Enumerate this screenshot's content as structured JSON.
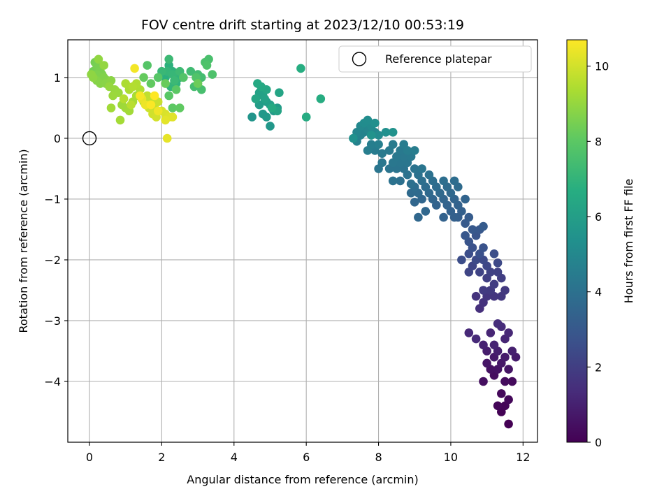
{
  "chart_data": {
    "type": "scatter",
    "title": "FOV centre drift starting at 2023/12/10 00:53:19",
    "xlabel": "Angular distance from reference (arcmin)",
    "ylabel": "Rotation from reference (arcmin)",
    "xlim": [
      -0.6,
      12.4
    ],
    "ylim": [
      -5.0,
      1.62
    ],
    "xticks": [
      0,
      2,
      4,
      6,
      8,
      10,
      12
    ],
    "yticks": [
      -4,
      -3,
      -2,
      -1,
      0,
      1
    ],
    "xtick_labels": [
      "0",
      "2",
      "4",
      "6",
      "8",
      "10",
      "12"
    ],
    "ytick_labels": [
      "−4",
      "−3",
      "−2",
      "−1",
      "0",
      "1"
    ],
    "grid": true,
    "legend": {
      "placement": "top-right",
      "entries": [
        "Reference platepar"
      ]
    },
    "reference_point": {
      "x": 0,
      "y": 0,
      "label": "Reference platepar"
    },
    "colorbar": {
      "label": "Hours from first FF file",
      "colormap": "viridis",
      "range": [
        0,
        10.7
      ],
      "ticks": [
        0,
        2,
        4,
        6,
        8,
        10
      ],
      "tick_labels": [
        "0",
        "2",
        "4",
        "6",
        "8",
        "10"
      ]
    },
    "series": [
      {
        "points": [
          [
            11.6,
            -4.7
          ],
          [
            11.4,
            -4.5
          ],
          [
            11.5,
            -4.4
          ],
          [
            11.3,
            -4.4
          ],
          [
            11.6,
            -4.3
          ],
          [
            11.4,
            -4.2
          ],
          [
            11.7,
            -4.0
          ],
          [
            11.5,
            -4.0
          ],
          [
            11.2,
            -3.9
          ],
          [
            10.9,
            -4.0
          ],
          [
            11.1,
            -3.8
          ],
          [
            11.3,
            -3.8
          ],
          [
            11.6,
            -3.8
          ],
          [
            11.0,
            -3.7
          ],
          [
            11.4,
            -3.7
          ],
          [
            11.2,
            -3.6
          ],
          [
            11.5,
            -3.6
          ],
          [
            11.8,
            -3.6
          ],
          [
            11.0,
            -3.5
          ],
          [
            11.3,
            -3.5
          ],
          [
            11.7,
            -3.5
          ],
          [
            10.9,
            -3.4
          ],
          [
            11.2,
            -3.4
          ],
          [
            11.5,
            -3.3
          ],
          [
            11.1,
            -3.2
          ],
          [
            11.6,
            -3.2
          ],
          [
            10.5,
            -3.2
          ],
          [
            10.7,
            -3.3
          ],
          [
            11.4,
            -3.1
          ],
          [
            11.3,
            -3.05
          ]
        ],
        "hours_range": [
          0.0,
          1.4
        ]
      },
      {
        "points": [
          [
            10.8,
            -2.8
          ],
          [
            10.9,
            -2.7
          ],
          [
            10.7,
            -2.6
          ],
          [
            11.0,
            -2.6
          ],
          [
            11.2,
            -2.6
          ],
          [
            11.4,
            -2.6
          ],
          [
            11.5,
            -2.5
          ],
          [
            11.1,
            -2.5
          ],
          [
            10.9,
            -2.5
          ],
          [
            11.2,
            -2.4
          ],
          [
            11.4,
            -2.3
          ],
          [
            11.0,
            -2.3
          ],
          [
            11.3,
            -2.2
          ],
          [
            11.1,
            -2.2
          ],
          [
            10.8,
            -2.2
          ],
          [
            10.5,
            -2.2
          ],
          [
            10.6,
            -2.1
          ],
          [
            11.0,
            -2.1
          ],
          [
            11.3,
            -2.05
          ],
          [
            10.9,
            -2.0
          ],
          [
            10.7,
            -2.0
          ],
          [
            10.3,
            -2.0
          ],
          [
            10.5,
            -1.9
          ],
          [
            11.2,
            -1.9
          ],
          [
            10.8,
            -1.9
          ],
          [
            10.6,
            -1.8
          ],
          [
            10.9,
            -1.8
          ],
          [
            10.5,
            -1.7
          ],
          [
            10.7,
            -1.6
          ],
          [
            10.4,
            -1.6
          ],
          [
            10.8,
            -1.5
          ],
          [
            10.6,
            -1.5
          ],
          [
            10.4,
            -1.4
          ],
          [
            10.9,
            -1.45
          ],
          [
            10.5,
            -1.3
          ],
          [
            10.2,
            -1.3
          ]
        ],
        "hours_range": [
          1.5,
          3.2
        ]
      },
      {
        "points": [
          [
            10.1,
            -1.3
          ],
          [
            10.3,
            -1.2
          ],
          [
            10.0,
            -1.2
          ],
          [
            9.8,
            -1.3
          ],
          [
            10.2,
            -1.1
          ],
          [
            9.9,
            -1.1
          ],
          [
            9.6,
            -1.1
          ],
          [
            10.4,
            -1.0
          ],
          [
            10.1,
            -1.0
          ],
          [
            9.8,
            -1.0
          ],
          [
            9.5,
            -1.0
          ],
          [
            9.2,
            -1.0
          ],
          [
            9.0,
            -1.05
          ],
          [
            9.3,
            -1.2
          ],
          [
            9.1,
            -1.3
          ],
          [
            10.0,
            -0.9
          ],
          [
            9.7,
            -0.9
          ],
          [
            9.4,
            -0.9
          ],
          [
            9.1,
            -0.9
          ],
          [
            8.9,
            -0.9
          ],
          [
            10.2,
            -0.8
          ],
          [
            9.9,
            -0.8
          ],
          [
            9.6,
            -0.8
          ],
          [
            9.3,
            -0.8
          ],
          [
            9.0,
            -0.8
          ],
          [
            10.1,
            -0.7
          ],
          [
            9.8,
            -0.7
          ],
          [
            9.5,
            -0.7
          ],
          [
            9.2,
            -0.7
          ],
          [
            8.9,
            -0.75
          ],
          [
            8.6,
            -0.7
          ],
          [
            9.4,
            -0.6
          ],
          [
            9.1,
            -0.6
          ],
          [
            8.8,
            -0.6
          ],
          [
            8.4,
            -0.7
          ],
          [
            9.0,
            -0.5
          ],
          [
            8.7,
            -0.5
          ],
          [
            8.5,
            -0.5
          ],
          [
            8.3,
            -0.5
          ],
          [
            8.0,
            -0.5
          ],
          [
            9.2,
            -0.5
          ],
          [
            8.6,
            -0.4
          ],
          [
            8.8,
            -0.4
          ],
          [
            8.4,
            -0.4
          ],
          [
            8.1,
            -0.4
          ],
          [
            8.7,
            -0.3
          ],
          [
            8.5,
            -0.3
          ],
          [
            8.9,
            -0.3
          ],
          [
            8.6,
            -0.2
          ],
          [
            8.3,
            -0.2
          ],
          [
            8.1,
            -0.25
          ],
          [
            7.9,
            -0.2
          ],
          [
            8.4,
            -0.1
          ],
          [
            8.7,
            -0.1
          ],
          [
            9.0,
            -0.2
          ],
          [
            8.8,
            -0.2
          ],
          [
            7.7,
            -0.2
          ],
          [
            7.8,
            -0.1
          ],
          [
            8.0,
            -0.1
          ]
        ],
        "hours_range": [
          3.3,
          4.6
        ]
      },
      {
        "points": [
          [
            7.4,
            -0.05
          ],
          [
            7.5,
            0.05
          ],
          [
            7.6,
            0.1
          ],
          [
            7.4,
            0.1
          ],
          [
            7.7,
            0.15
          ],
          [
            7.9,
            0.1
          ],
          [
            7.5,
            0.2
          ],
          [
            7.8,
            0.2
          ],
          [
            8.0,
            0.05
          ],
          [
            7.6,
            0.25
          ],
          [
            7.7,
            0.3
          ],
          [
            7.9,
            0.25
          ],
          [
            8.2,
            0.1
          ],
          [
            7.3,
            0.0
          ],
          [
            8.4,
            0.1
          ],
          [
            7.8,
            0.05
          ]
        ],
        "hours_range": [
          4.7,
          5.5
        ]
      },
      {
        "points": [
          [
            4.5,
            0.35
          ],
          [
            5.0,
            0.2
          ],
          [
            4.8,
            0.4
          ],
          [
            4.9,
            0.35
          ],
          [
            5.1,
            0.45
          ],
          [
            5.2,
            0.5
          ],
          [
            4.7,
            0.55
          ],
          [
            4.9,
            0.6
          ],
          [
            5.0,
            0.55
          ],
          [
            4.8,
            0.7
          ],
          [
            4.7,
            0.75
          ],
          [
            4.85,
            0.65
          ],
          [
            5.2,
            0.45
          ],
          [
            5.25,
            0.75
          ],
          [
            4.6,
            0.65
          ],
          [
            4.9,
            0.8
          ],
          [
            4.75,
            0.85
          ],
          [
            4.65,
            0.9
          ],
          [
            5.05,
            0.5
          ],
          [
            6.0,
            0.35
          ],
          [
            6.4,
            0.65
          ],
          [
            5.85,
            1.15
          ]
        ],
        "hours_range": [
          5.6,
          6.7
        ]
      },
      {
        "points": [
          [
            2.1,
            1.0
          ],
          [
            2.2,
            1.2
          ],
          [
            2.3,
            1.1
          ],
          [
            2.4,
            0.9
          ],
          [
            2.5,
            1.0
          ],
          [
            2.25,
            0.85
          ],
          [
            2.15,
            1.1
          ],
          [
            2.3,
            1.05
          ],
          [
            2.0,
            1.1
          ],
          [
            2.35,
            0.95
          ],
          [
            2.2,
            1.3
          ],
          [
            2.5,
            1.1
          ],
          [
            2.8,
            1.1
          ],
          [
            3.0,
            1.05
          ],
          [
            3.1,
            1.0
          ],
          [
            2.9,
            0.85
          ],
          [
            3.1,
            0.8
          ],
          [
            3.3,
            1.3
          ],
          [
            3.2,
            1.25
          ],
          [
            3.4,
            1.05
          ],
          [
            3.25,
            1.2
          ],
          [
            2.95,
            1.0
          ],
          [
            2.6,
            1.0
          ],
          [
            1.6,
            1.2
          ],
          [
            1.9,
            1.0
          ],
          [
            2.2,
            0.7
          ],
          [
            2.4,
            0.8
          ],
          [
            2.3,
            0.5
          ],
          [
            2.5,
            0.5
          ],
          [
            1.7,
            0.9
          ],
          [
            1.5,
            1.0
          ],
          [
            1.8,
            0.6
          ],
          [
            2.1,
            0.9
          ],
          [
            3.0,
            0.9
          ]
        ],
        "hours_range": [
          6.8,
          8.3
        ]
      },
      {
        "points": [
          [
            0.1,
            1.1
          ],
          [
            0.15,
            1.25
          ],
          [
            0.2,
            1.2
          ],
          [
            0.25,
            1.15
          ],
          [
            0.3,
            1.1
          ],
          [
            0.35,
            1.05
          ],
          [
            0.2,
            1.05
          ],
          [
            0.3,
            1.0
          ],
          [
            0.4,
            1.0
          ],
          [
            0.5,
            0.95
          ],
          [
            0.2,
            0.95
          ],
          [
            0.3,
            0.9
          ],
          [
            0.45,
            0.9
          ],
          [
            0.6,
            0.95
          ],
          [
            0.1,
            1.0
          ],
          [
            0.05,
            1.05
          ],
          [
            0.25,
            1.3
          ],
          [
            0.4,
            1.2
          ],
          [
            0.55,
            0.85
          ],
          [
            0.7,
            0.8
          ],
          [
            0.8,
            0.75
          ],
          [
            0.65,
            0.7
          ],
          [
            0.9,
            0.55
          ],
          [
            1.0,
            0.5
          ],
          [
            0.6,
            0.5
          ],
          [
            1.1,
            0.45
          ],
          [
            0.85,
            0.3
          ],
          [
            1.2,
            0.6
          ],
          [
            1.3,
            0.7
          ],
          [
            1.1,
            0.8
          ],
          [
            1.0,
            0.9
          ],
          [
            1.4,
            0.8
          ],
          [
            1.3,
            0.9
          ],
          [
            1.2,
            0.85
          ],
          [
            0.95,
            0.65
          ],
          [
            1.5,
            0.6
          ],
          [
            1.15,
            0.55
          ]
        ],
        "hours_range": [
          8.4,
          9.6
        ]
      },
      {
        "points": [
          [
            1.6,
            0.7
          ],
          [
            1.7,
            0.6
          ],
          [
            1.8,
            0.5
          ],
          [
            1.9,
            0.6
          ],
          [
            1.65,
            0.5
          ],
          [
            1.75,
            0.4
          ],
          [
            1.85,
            0.35
          ],
          [
            2.0,
            0.45
          ],
          [
            2.1,
            0.4
          ],
          [
            2.2,
            0.35
          ],
          [
            2.3,
            0.35
          ],
          [
            2.1,
            0.3
          ],
          [
            2.15,
            0.0
          ],
          [
            1.45,
            0.65
          ],
          [
            1.55,
            0.55
          ],
          [
            1.9,
            0.45
          ],
          [
            1.25,
            1.15
          ],
          [
            1.4,
            0.7
          ],
          [
            1.7,
            0.55
          ],
          [
            1.8,
            0.7
          ]
        ],
        "hours_range": [
          9.7,
          10.7
        ]
      }
    ]
  }
}
